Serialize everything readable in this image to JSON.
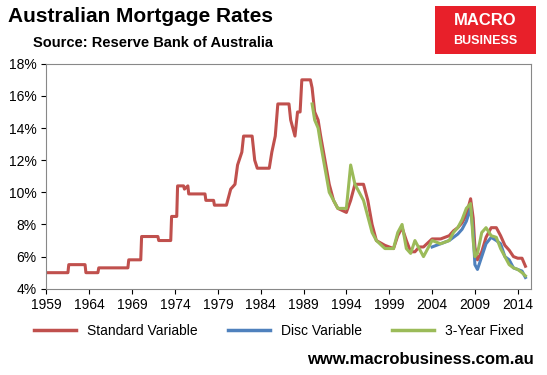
{
  "chart_data": {
    "type": "line",
    "title": "Australian Mortgage Rates",
    "subtitle": "Source: Reserve Bank of Australia",
    "annotations": [
      "MACRO",
      "BUSINESS",
      "www.macrobusiness.com.au"
    ],
    "x": [
      1959.0,
      1961.5,
      1961.6,
      1963.5,
      1963.6,
      1965.0,
      1965.1,
      1968.5,
      1968.6,
      1970.0,
      1970.1,
      1972.0,
      1972.1,
      1973.5,
      1973.6,
      1974.2,
      1974.3,
      1975.0,
      1975.1,
      1975.5,
      1975.6,
      1977.5,
      1977.6,
      1978.5,
      1978.6,
      1980.0,
      1980.5,
      1981.0,
      1981.3,
      1981.8,
      1982.0,
      1983.0,
      1983.3,
      1983.6,
      1985.0,
      1985.3,
      1985.7,
      1986.0,
      1987.3,
      1987.5,
      1988.0,
      1988.3,
      1988.6,
      1988.8,
      1989.8,
      1990.0,
      1990.3,
      1990.7,
      1991.0,
      1991.5,
      1992.0,
      1992.5,
      1993.0,
      1994.0,
      1994.5,
      1995.0,
      1996.0,
      1996.5,
      1997.0,
      1997.5,
      1998.5,
      1999.5,
      2000.0,
      2000.5,
      2001.0,
      2001.5,
      2002.0,
      2002.5,
      2003.0,
      2004.0,
      2005.0,
      2006.0,
      2006.5,
      2007.0,
      2007.5,
      2008.0,
      2008.5,
      2008.8,
      2009.0,
      2009.3,
      2009.8,
      2010.3,
      2010.9,
      2011.5,
      2012.0,
      2012.5,
      2013.0,
      2013.5,
      2014.0,
      2014.5,
      2014.9
    ],
    "series": [
      {
        "name": "Standard Variable",
        "color": "#c0504d",
        "values": [
          5.0,
          5.0,
          5.5,
          5.5,
          5.0,
          5.0,
          5.3,
          5.3,
          5.8,
          5.8,
          7.25,
          7.25,
          7.0,
          7.0,
          8.5,
          8.5,
          10.4,
          10.4,
          10.2,
          10.4,
          9.9,
          9.9,
          9.5,
          9.5,
          9.2,
          9.2,
          10.2,
          10.5,
          11.7,
          12.5,
          13.5,
          13.5,
          12.0,
          11.5,
          11.5,
          12.5,
          13.5,
          15.5,
          15.5,
          14.5,
          13.5,
          15.0,
          15.0,
          17.0,
          17.0,
          16.5,
          15.0,
          14.5,
          13.5,
          12.0,
          10.5,
          9.5,
          9.0,
          8.75,
          9.5,
          10.5,
          10.5,
          9.5,
          8.0,
          7.0,
          6.7,
          6.5,
          7.3,
          7.8,
          7.0,
          6.3,
          6.3,
          6.6,
          6.6,
          7.1,
          7.1,
          7.3,
          7.6,
          7.8,
          8.1,
          8.6,
          9.6,
          8.4,
          6.6,
          5.8,
          6.3,
          7.2,
          7.8,
          7.8,
          7.3,
          6.7,
          6.4,
          6.0,
          5.9,
          5.9,
          5.4
        ]
      },
      {
        "name": "Disc Variable",
        "color": "#4f81bd",
        "values": [
          null,
          null,
          null,
          null,
          null,
          null,
          null,
          null,
          null,
          null,
          null,
          null,
          null,
          null,
          null,
          null,
          null,
          null,
          null,
          null,
          null,
          null,
          null,
          null,
          null,
          null,
          null,
          null,
          null,
          null,
          null,
          null,
          null,
          null,
          null,
          null,
          null,
          null,
          null,
          null,
          null,
          null,
          null,
          null,
          null,
          null,
          null,
          null,
          null,
          null,
          null,
          null,
          null,
          null,
          null,
          null,
          null,
          null,
          null,
          null,
          null,
          null,
          null,
          null,
          null,
          null,
          null,
          null,
          null,
          6.6,
          6.8,
          7.0,
          7.2,
          7.4,
          7.7,
          8.2,
          9.0,
          7.5,
          5.5,
          5.2,
          6.0,
          6.8,
          7.2,
          7.0,
          6.8,
          6.0,
          5.8,
          5.3,
          5.2,
          5.1,
          4.7
        ]
      },
      {
        "name": "3-Year Fixed",
        "color": "#9bbb59",
        "values": [
          null,
          null,
          null,
          null,
          null,
          null,
          null,
          null,
          null,
          null,
          null,
          null,
          null,
          null,
          null,
          null,
          null,
          null,
          null,
          null,
          null,
          null,
          null,
          null,
          null,
          null,
          null,
          null,
          null,
          null,
          null,
          null,
          null,
          null,
          null,
          null,
          null,
          null,
          null,
          null,
          null,
          null,
          null,
          null,
          null,
          15.5,
          14.5,
          14.0,
          13.0,
          11.5,
          10.0,
          9.5,
          9.0,
          9.0,
          11.7,
          10.5,
          9.5,
          8.5,
          7.5,
          7.0,
          6.5,
          6.5,
          7.5,
          8.0,
          6.5,
          6.2,
          7.0,
          6.5,
          6.0,
          7.0,
          6.8,
          7.0,
          7.5,
          7.8,
          8.3,
          9.0,
          9.3,
          7.0,
          6.0,
          6.2,
          7.5,
          7.8,
          7.3,
          7.2,
          6.5,
          6.0,
          5.5,
          5.3,
          5.2,
          5.0,
          4.8
        ]
      }
    ],
    "xlim": [
      1959,
      2015.5
    ],
    "xticks": [
      1959,
      1964,
      1969,
      1974,
      1979,
      1984,
      1989,
      1994,
      1999,
      2004,
      2009,
      2014
    ],
    "ylim": [
      4,
      18
    ],
    "yticks": [
      {
        "value": 4,
        "label": "4%"
      },
      {
        "value": 6,
        "label": "6%"
      },
      {
        "value": 8,
        "label": "8%"
      },
      {
        "value": 10,
        "label": "10%"
      },
      {
        "value": 12,
        "label": "12%"
      },
      {
        "value": 14,
        "label": "14%"
      },
      {
        "value": 16,
        "label": "16%"
      },
      {
        "value": 18,
        "label": "18%"
      }
    ],
    "grid": false,
    "legend": "bottom"
  }
}
